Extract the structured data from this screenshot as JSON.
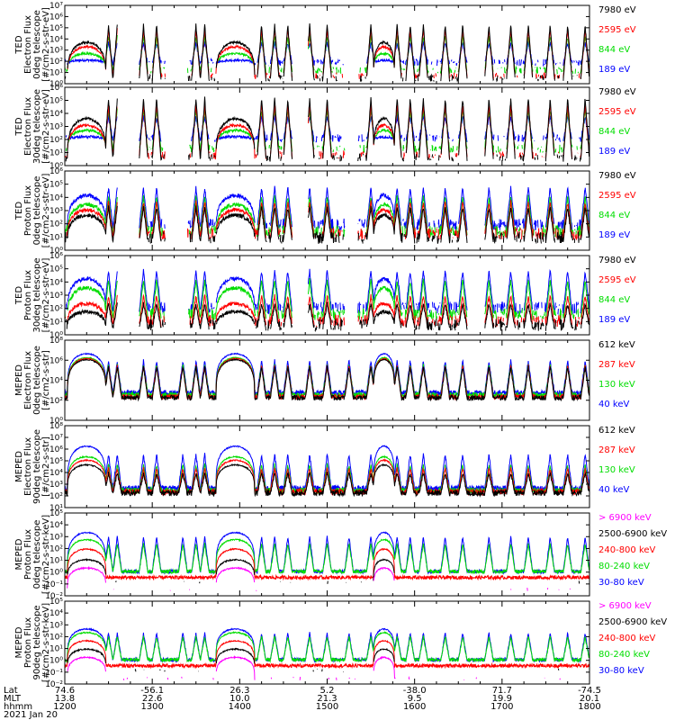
{
  "colors": {
    "black": "#000000",
    "red": "#ff0000",
    "green": "#00dd00",
    "blue": "#0000ff",
    "magenta": "#ff00ff"
  },
  "chart_data": {
    "type": "line",
    "x_axis": {
      "rows": [
        {
          "label": "Lat",
          "values": [
            "74.6",
            "-56.1",
            "26.3",
            "5.2",
            "-38.0",
            "71.7",
            "-74.5"
          ]
        },
        {
          "label": "MLT",
          "values": [
            "13.8",
            "22.6",
            "10.0",
            "21.3",
            "9.5",
            "19.9",
            "20.1"
          ]
        },
        {
          "label": "hhmm",
          "values": [
            "1200",
            "1300",
            "1400",
            "1500",
            "1600",
            "1700",
            "1800"
          ]
        }
      ],
      "date": "2021 Jan 20",
      "range_hours": [
        12,
        18
      ]
    },
    "panels": [
      {
        "ylabel": [
          "TED",
          "Electron Flux",
          "0deg telescope",
          "[#/cm2-s-str-eV]"
        ],
        "ylog": [
          0,
          7
        ],
        "ticks": [
          "10⁰",
          "10¹",
          "10²",
          "10³",
          "10⁴",
          "10⁵",
          "10⁶",
          "10⁷"
        ],
        "legend": [
          {
            "text": "7980 eV",
            "color": "black"
          },
          {
            "text": "2595 eV",
            "color": "red"
          },
          {
            "text": "844 eV",
            "color": "green"
          },
          {
            "text": "189 eV",
            "color": "blue"
          }
        ],
        "kind": "ted_e",
        "peaks": [
          3.6,
          3.2,
          2.6,
          2.0
        ],
        "base": [
          0.2,
          0.4,
          0.9,
          1.6
        ]
      },
      {
        "ylabel": [
          "TED",
          "Electron Flux",
          "30deg telescope",
          "[#/cm2-s-str-eV]"
        ],
        "ylog": [
          0,
          6
        ],
        "ticks": [
          "10⁰",
          "10¹",
          "10²",
          "10³",
          "10⁴",
          "10⁵",
          "10⁶"
        ],
        "legend": [
          {
            "text": "7980 eV",
            "color": "black"
          },
          {
            "text": "2595 eV",
            "color": "red"
          },
          {
            "text": "844 eV",
            "color": "green"
          },
          {
            "text": "189 eV",
            "color": "blue"
          }
        ],
        "kind": "ted_e",
        "peaks": [
          3.5,
          3.0,
          2.6,
          2.1
        ],
        "base": [
          0.3,
          0.5,
          1.0,
          1.8
        ]
      },
      {
        "ylabel": [
          "TED",
          "Proton Flux",
          "0deg telescope",
          "[#/cm2-s-str-eV]"
        ],
        "ylog": [
          0,
          6
        ],
        "ticks": [
          "10⁰",
          "10¹",
          "10²",
          "10³",
          "10⁴",
          "10⁵",
          "10⁶"
        ],
        "legend": [
          {
            "text": "7980 eV",
            "color": "black"
          },
          {
            "text": "2595 eV",
            "color": "red"
          },
          {
            "text": "844 eV",
            "color": "green"
          },
          {
            "text": "189 eV",
            "color": "blue"
          }
        ],
        "kind": "ted_p",
        "peaks": [
          2.5,
          2.9,
          3.3,
          4.0
        ],
        "base": [
          0.5,
          0.8,
          1.0,
          1.5
        ]
      },
      {
        "ylabel": [
          "TED",
          "Proton Flux",
          "30deg telescope",
          "[#/cm2-s-str-eV]"
        ],
        "ylog": [
          0,
          6
        ],
        "ticks": [
          "10⁰",
          "10¹",
          "10²",
          "10³",
          "10⁴",
          "10⁵",
          "10⁶"
        ],
        "legend": [
          {
            "text": "7980 eV",
            "color": "black"
          },
          {
            "text": "2595 eV",
            "color": "red"
          },
          {
            "text": "844 eV",
            "color": "green"
          },
          {
            "text": "189 eV",
            "color": "blue"
          }
        ],
        "kind": "ted_p",
        "peaks": [
          1.6,
          2.2,
          3.4,
          4.1
        ],
        "base": [
          0.3,
          0.6,
          1.1,
          1.6
        ]
      },
      {
        "ylabel": [
          "MEPED",
          "Electron Flux",
          "0deg telescope",
          "[#/cm2-s-str]"
        ],
        "ylog": [
          0,
          8
        ],
        "ticks": [
          "10⁰",
          "10²",
          "10⁴",
          "10⁶",
          "10⁸"
        ],
        "legend": [
          {
            "text": "612 keV",
            "color": "black"
          },
          {
            "text": "287 keV",
            "color": "red"
          },
          {
            "text": "130 keV",
            "color": "green"
          },
          {
            "text": "40 keV",
            "color": "blue"
          }
        ],
        "kind": "mep_e",
        "peaks": [
          6.0,
          6.1,
          6.2,
          6.6
        ],
        "base": [
          2.0,
          2.1,
          2.3,
          2.5
        ]
      },
      {
        "ylabel": [
          "MEPED",
          "Electron Flux",
          "90deg telescope",
          "[#/cm2-s-str]"
        ],
        "ylog": [
          1,
          8
        ],
        "ticks": [
          "10¹",
          "10²",
          "10³",
          "10⁴",
          "10⁵",
          "10⁶",
          "10⁷",
          "10⁸"
        ],
        "legend": [
          {
            "text": "612 keV",
            "color": "black"
          },
          {
            "text": "287 keV",
            "color": "red"
          },
          {
            "text": "130 keV",
            "color": "green"
          },
          {
            "text": "40 keV",
            "color": "blue"
          }
        ],
        "kind": "mep_e",
        "peaks": [
          4.6,
          5.0,
          5.3,
          6.2
        ],
        "base": [
          2.0,
          2.1,
          2.2,
          2.4
        ]
      },
      {
        "ylabel": [
          "MEPED",
          "Proton Flux",
          "0deg telescope",
          "[#/cm2-s-str-keV]"
        ],
        "ylog": [
          -2,
          5
        ],
        "ticks": [
          "10⁻²",
          "10⁻¹",
          "10⁰",
          "10¹",
          "10²",
          "10³",
          "10⁴",
          "10⁵"
        ],
        "legend": [
          {
            "text": "> 6900 keV",
            "color": "magenta"
          },
          {
            "text": "2500-6900 keV",
            "color": "black"
          },
          {
            "text": "240-800 keV",
            "color": "red"
          },
          {
            "text": "80-240 keV",
            "color": "green"
          },
          {
            "text": "30-80 keV",
            "color": "blue"
          }
        ],
        "kind": "mep_p",
        "peaks": [
          0.3,
          1.0,
          1.9,
          2.7,
          3.3
        ],
        "base": [
          -1.6,
          -1.0,
          -0.6,
          -0.1,
          -0.1
        ]
      },
      {
        "ylabel": [
          "MEPED",
          "Proton Flux",
          "90deg telescope",
          "[#/cm2-s-str-keV]"
        ],
        "ylog": [
          -2,
          5
        ],
        "ticks": [
          "10⁻²",
          "10⁻¹",
          "10⁰",
          "10¹",
          "10²",
          "10³",
          "10⁴",
          "10⁵"
        ],
        "legend": [
          {
            "text": "> 6900 keV",
            "color": "magenta"
          },
          {
            "text": "2500-6900 keV",
            "color": "black"
          },
          {
            "text": "240-800 keV",
            "color": "red"
          },
          {
            "text": "80-240 keV",
            "color": "green"
          },
          {
            "text": "30-80 keV",
            "color": "blue"
          }
        ],
        "kind": "mep_p",
        "peaks": [
          0.2,
          0.9,
          1.6,
          2.3,
          2.6
        ],
        "base": [
          -1.7,
          -1.0,
          -0.6,
          -0.1,
          -0.1
        ]
      }
    ],
    "events": {
      "belt_crossings_hours": [
        12.25,
        13.95,
        15.65
      ],
      "belt_widths_hours": [
        0.22,
        0.22,
        0.12
      ],
      "auroral_bursts_hours": [
        12.5,
        12.6,
        12.9,
        13.05,
        13.35,
        13.5,
        13.6,
        13.8,
        14.25,
        14.4,
        14.55,
        14.8,
        15.0,
        15.25,
        15.5,
        15.8,
        15.95,
        16.1,
        16.35,
        16.55,
        16.85,
        17.1,
        17.3,
        17.55,
        17.75,
        17.95
      ],
      "data_gaps_hours": [
        [
          12.6,
          12.85
        ],
        [
          13.15,
          13.4
        ],
        [
          14.6,
          14.78
        ],
        [
          15.2,
          15.35
        ],
        [
          16.6,
          16.8
        ]
      ]
    }
  }
}
